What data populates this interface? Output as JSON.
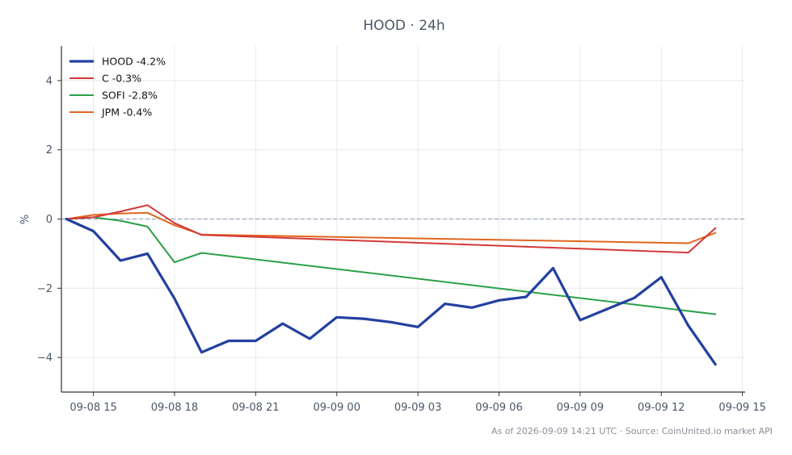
{
  "chart_data": {
    "type": "line",
    "title": "HOOD · 24h",
    "xlabel": "",
    "ylabel": "%",
    "x_ticks": [
      "09-08 15",
      "09-08 18",
      "09-08 21",
      "09-09 00",
      "09-09 03",
      "09-09 06",
      "09-09 09",
      "09-09 12",
      "09-09 15"
    ],
    "x_range": [
      "2026-09-08 13:49",
      "2026-09-09 15:06"
    ],
    "y_ticks": [
      -4,
      -2,
      0,
      2,
      4
    ],
    "ylim": [
      -5,
      5
    ],
    "reference_line": {
      "y": 0,
      "style": "dashed",
      "color": "#8a9bb5"
    },
    "grid": true,
    "legend_position": "top-left",
    "series": [
      {
        "name": "HOOD -4.2%",
        "color": "#2340a0",
        "x": [
          "2026-09-08 14:00",
          "2026-09-08 15:00",
          "2026-09-08 16:00",
          "2026-09-08 17:00",
          "2026-09-08 18:00",
          "2026-09-08 19:00",
          "2026-09-08 20:00",
          "2026-09-08 21:00",
          "2026-09-08 22:00",
          "2026-09-08 23:00",
          "2026-09-09 00:00",
          "2026-09-09 01:00",
          "2026-09-09 02:00",
          "2026-09-09 03:00",
          "2026-09-09 04:00",
          "2026-09-09 05:00",
          "2026-09-09 06:00",
          "2026-09-09 07:00",
          "2026-09-09 08:00",
          "2026-09-09 09:00",
          "2026-09-09 10:00",
          "2026-09-09 11:00",
          "2026-09-09 12:00",
          "2026-09-09 13:00",
          "2026-09-09 14:00"
        ],
        "values": [
          0.0,
          -0.35,
          -1.2,
          -1.0,
          -2.3,
          -3.85,
          -3.52,
          -3.52,
          -3.02,
          -3.46,
          -2.84,
          -2.88,
          -2.98,
          -3.12,
          -2.45,
          -2.56,
          -2.35,
          -2.25,
          -1.42,
          -2.92,
          -2.6,
          -2.28,
          -1.68,
          -3.08,
          -4.2
        ]
      },
      {
        "name": "C -0.3%",
        "color": "#d43838",
        "x": [
          "2026-09-08 14:00",
          "2026-09-08 15:00",
          "2026-09-08 16:00",
          "2026-09-08 17:00",
          "2026-09-08 18:00",
          "2026-09-08 19:00",
          "2026-09-09 13:00",
          "2026-09-09 14:00"
        ],
        "values": [
          0.0,
          0.05,
          0.22,
          0.4,
          -0.12,
          -0.46,
          -0.97,
          -0.26
        ]
      },
      {
        "name": "SOFI -2.8%",
        "color": "#2aa048",
        "x": [
          "2026-09-08 14:00",
          "2026-09-08 15:00",
          "2026-09-08 16:00",
          "2026-09-08 17:00",
          "2026-09-08 18:00",
          "2026-09-08 19:00",
          "2026-09-09 14:00"
        ],
        "values": [
          0.0,
          0.05,
          -0.05,
          -0.22,
          -1.25,
          -0.98,
          -2.75
        ]
      },
      {
        "name": "JPM -0.4%",
        "color": "#e0661e",
        "x": [
          "2026-09-08 14:00",
          "2026-09-08 15:00",
          "2026-09-08 16:00",
          "2026-09-08 17:00",
          "2026-09-08 18:00",
          "2026-09-08 19:00",
          "2026-09-09 13:00",
          "2026-09-09 14:00"
        ],
        "values": [
          0.0,
          0.12,
          0.16,
          0.18,
          -0.18,
          -0.45,
          -0.7,
          -0.4
        ]
      }
    ]
  },
  "footer": "As of 2026-09-09 14:21 UTC · Source: CoinUnited.io market API"
}
